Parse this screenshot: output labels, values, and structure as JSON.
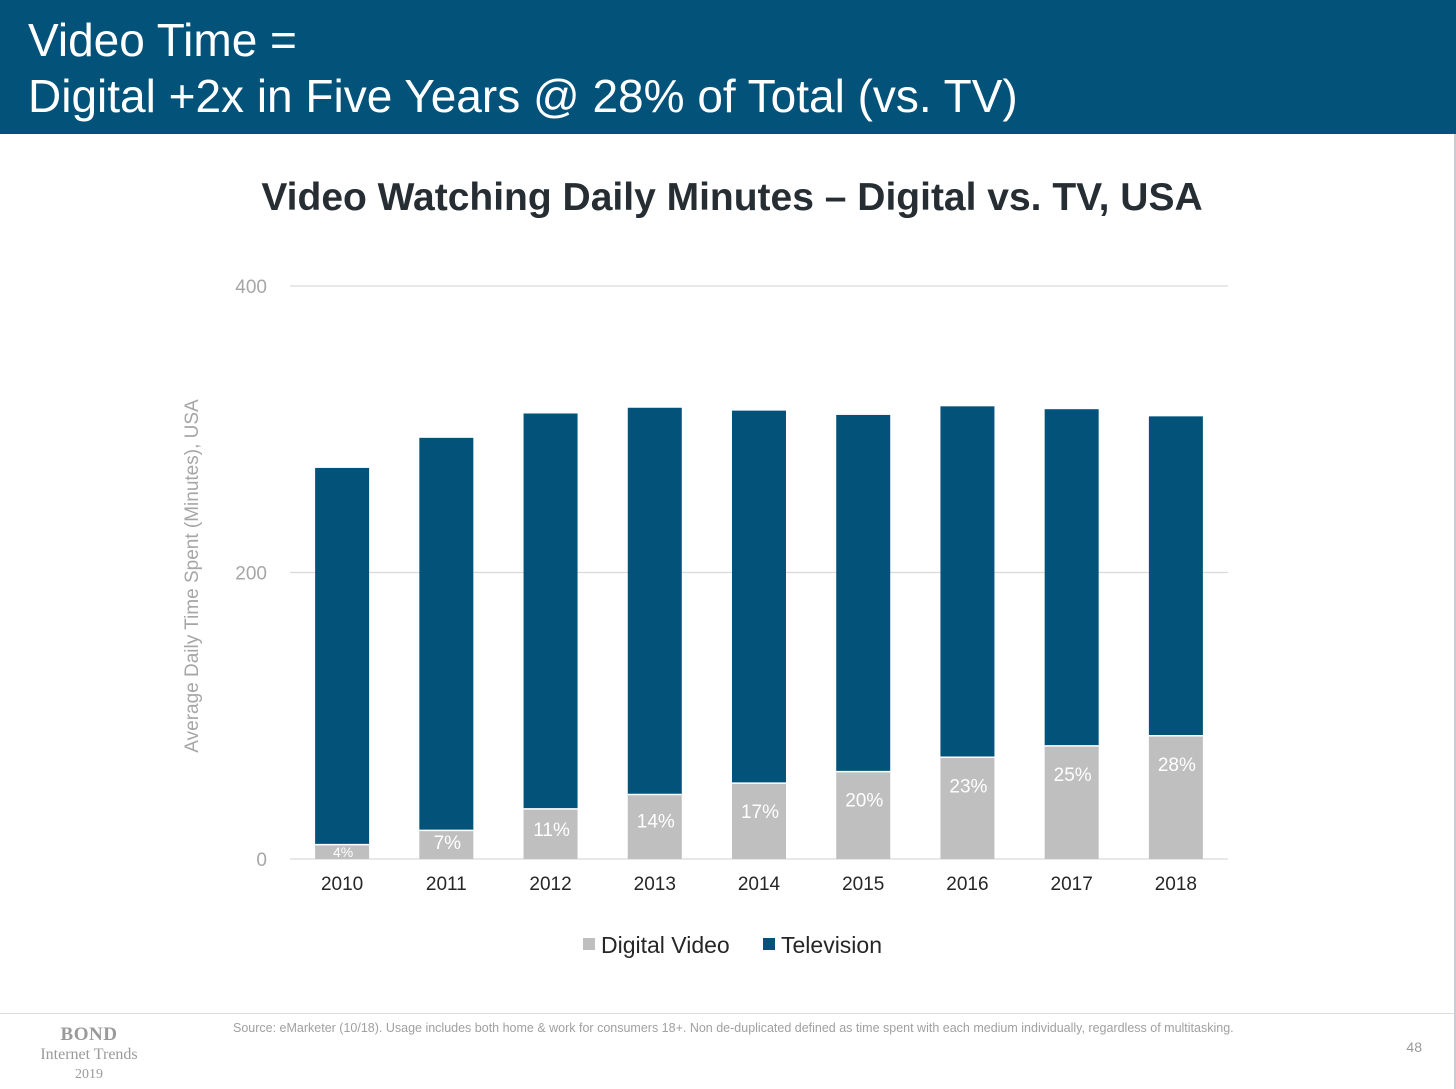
{
  "header": {
    "line1": "Video Time =",
    "line2": "Digital +2x in Five Years @ 28% of Total (vs. TV)"
  },
  "colors": {
    "header_bg": "#02527a",
    "television": "#02527a",
    "digital_video": "#bfbfbf"
  },
  "chart_data": {
    "type": "bar",
    "stacked": true,
    "title": "Video Watching Daily Minutes – Digital vs. TV, USA",
    "xlabel": "",
    "ylabel": "Average Daily Time Spent (Minutes), USA",
    "ylim": [
      0,
      400
    ],
    "yticks": [
      0,
      200,
      400
    ],
    "grid": true,
    "legend_position": "bottom",
    "categories": [
      "2010",
      "2011",
      "2012",
      "2013",
      "2014",
      "2015",
      "2016",
      "2017",
      "2018"
    ],
    "series": [
      {
        "name": "Digital Video",
        "color": "#bfbfbf",
        "values": [
          10,
          20,
          35,
          45,
          53,
          61,
          71,
          79,
          86
        ],
        "data_labels": [
          "4%",
          "7%",
          "11%",
          "14%",
          "17%",
          "20%",
          "23%",
          "25%",
          "28%"
        ]
      },
      {
        "name": "Television",
        "color": "#02527a",
        "values": [
          263,
          274,
          276,
          270,
          260,
          249,
          245,
          235,
          223
        ]
      }
    ]
  },
  "footer": {
    "brand_line1": "BOND",
    "brand_line2": "Internet Trends",
    "brand_line3": "2019",
    "source": "Source: eMarketer (10/18). Usage includes both home & work for consumers 18+. Non de-duplicated defined as time spent with each medium individually, regardless of multitasking.",
    "page_number": "48"
  }
}
